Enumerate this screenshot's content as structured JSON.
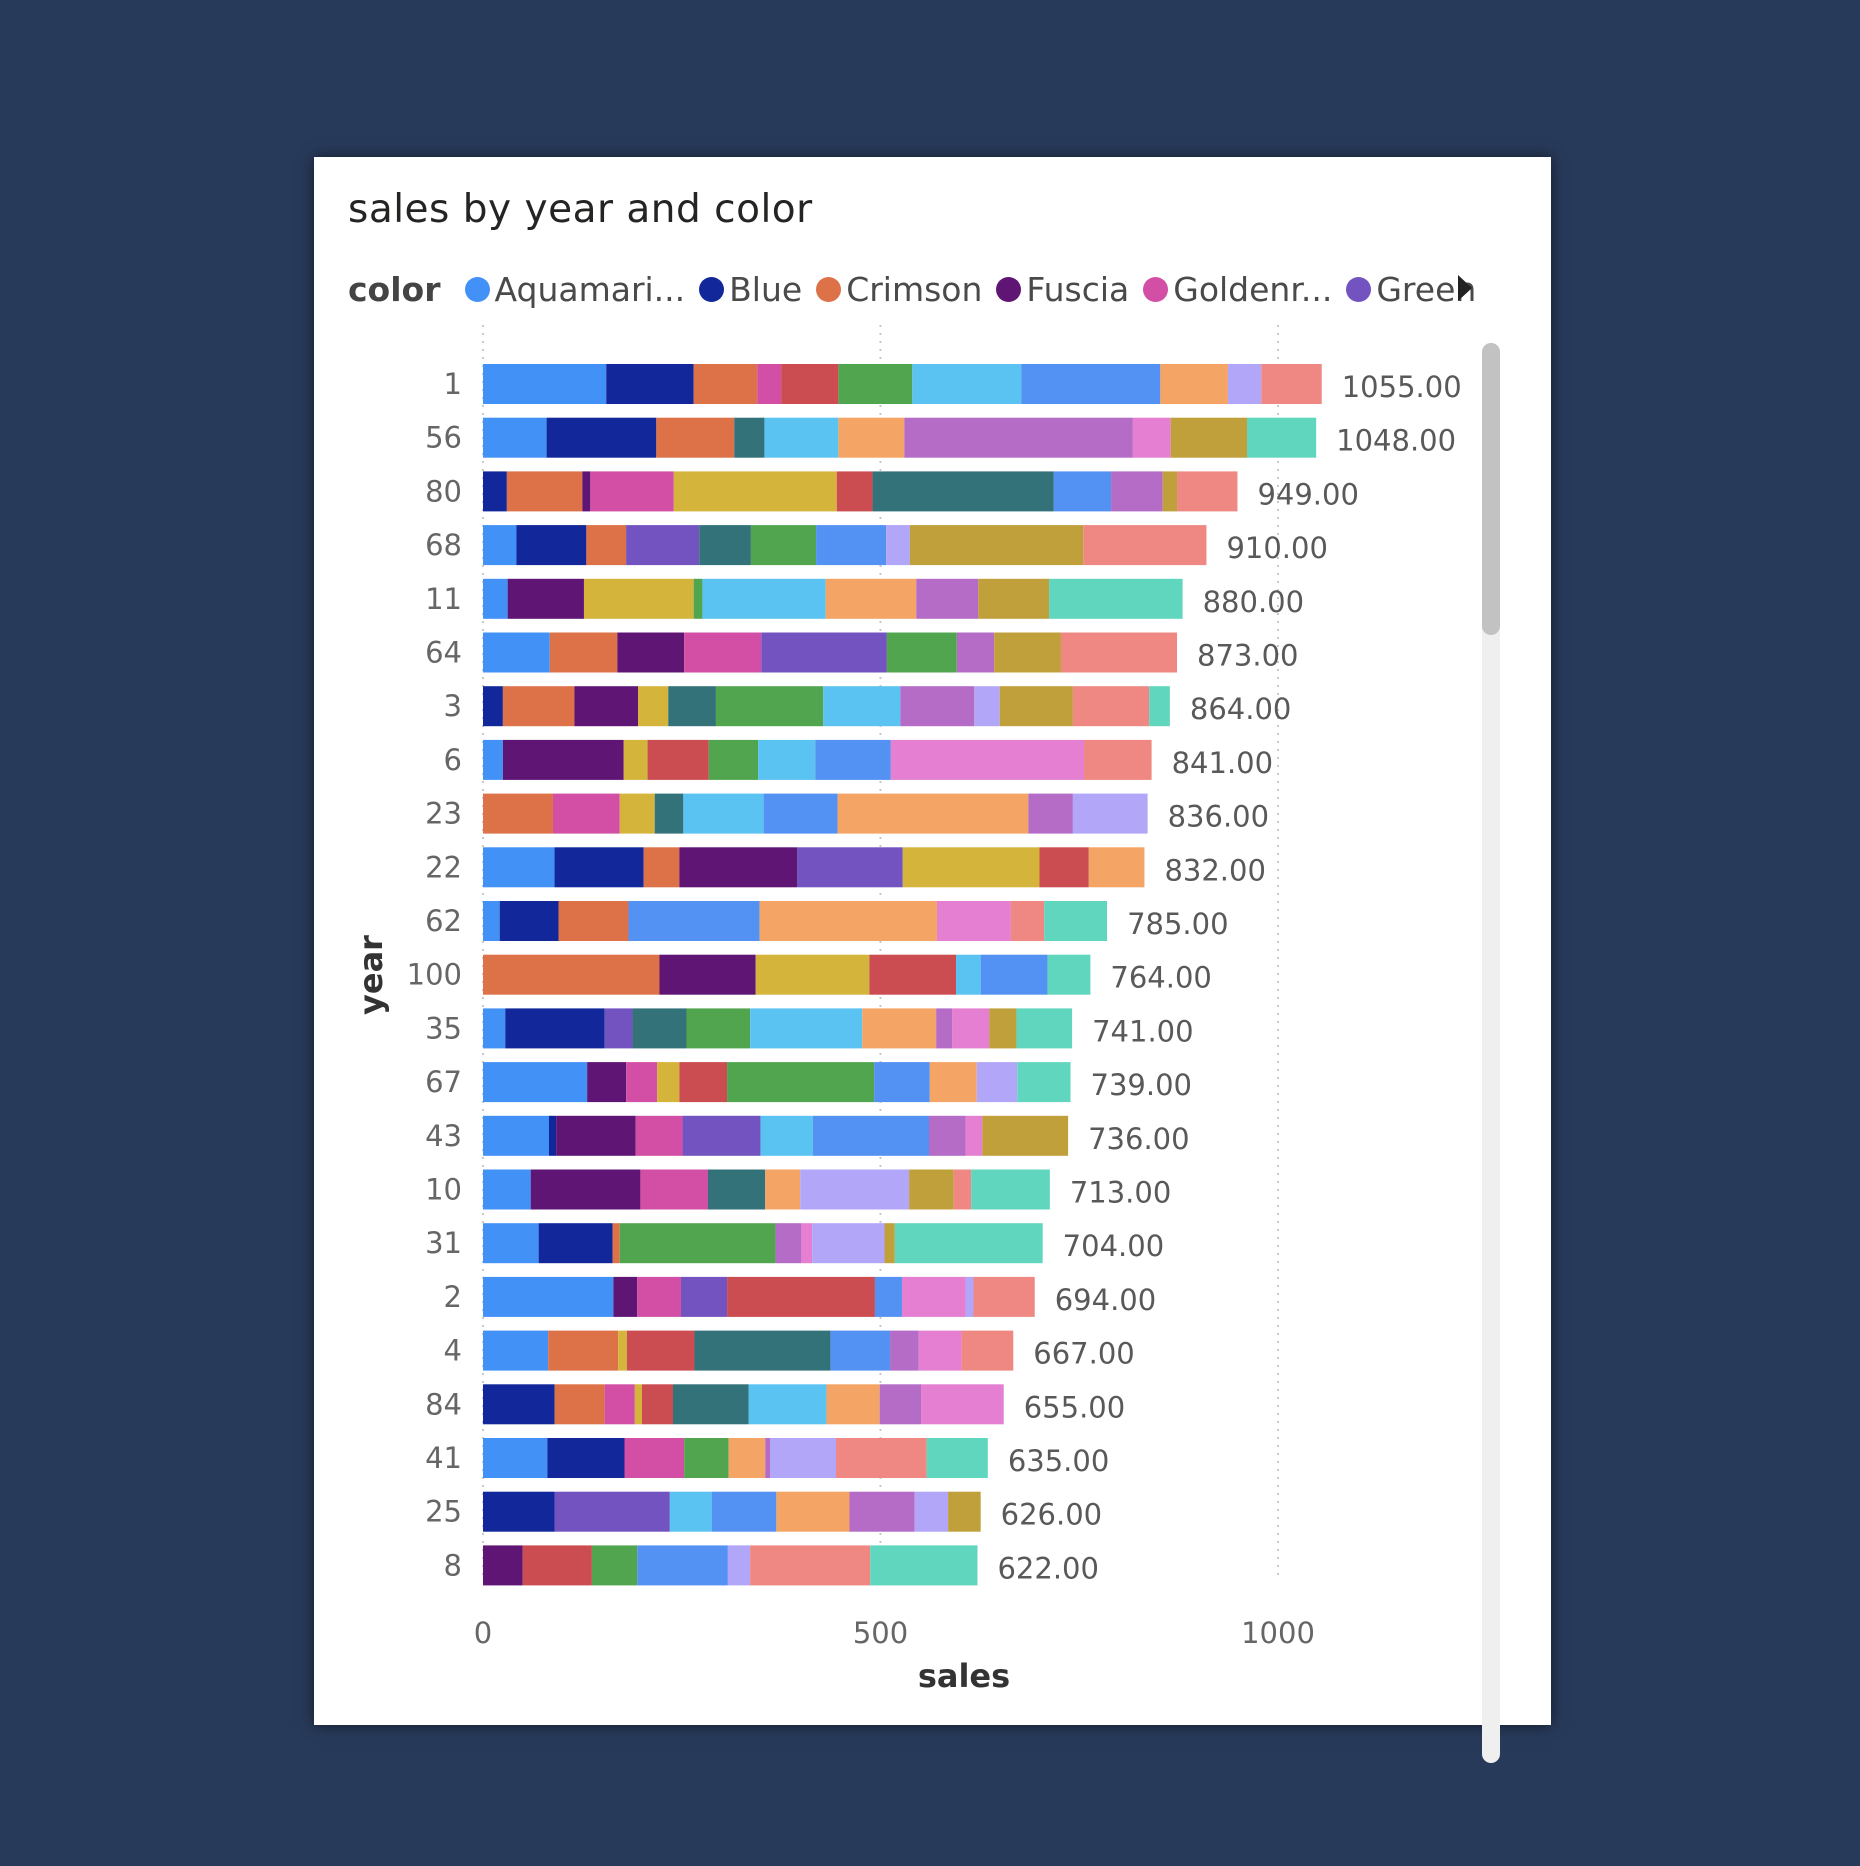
{
  "legend": {
    "title": "color",
    "items": [
      {
        "label": "Aquamari...",
        "color": "#4191f7"
      },
      {
        "label": "Blue",
        "color": "#11279a"
      },
      {
        "label": "Crimson",
        "color": "#dd7148"
      },
      {
        "label": "Fuscia",
        "color": "#5f1574"
      },
      {
        "label": "Goldenr...",
        "color": "#d24fa5"
      },
      {
        "label": "Green",
        "color": "#7253c0"
      }
    ]
  },
  "chart_data": {
    "type": "bar",
    "orientation": "horizontal",
    "stacked": true,
    "title": "sales by year and color",
    "xlabel": "sales",
    "ylabel": "year",
    "xlim": [
      0,
      1200
    ],
    "xticks": [
      0,
      500,
      1000
    ],
    "grid": "vertical-dotted",
    "legend_position": "top-left",
    "categories": [
      "1",
      "56",
      "80",
      "68",
      "11",
      "64",
      "3",
      "6",
      "23",
      "22",
      "62",
      "100",
      "35",
      "67",
      "43",
      "10",
      "31",
      "2",
      "4",
      "84",
      "41",
      "25",
      "8"
    ],
    "totals": [
      1055,
      1048,
      949,
      910,
      880,
      873,
      864,
      841,
      836,
      832,
      785,
      764,
      741,
      739,
      736,
      713,
      704,
      694,
      667,
      655,
      635,
      626,
      622
    ],
    "total_labels": [
      "1055.00",
      "1048.00",
      "949.00",
      "910.00",
      "880.00",
      "873.00",
      "864.00",
      "841.00",
      "836.00",
      "832.00",
      "785.00",
      "764.00",
      "741.00",
      "739.00",
      "736.00",
      "713.00",
      "704.00",
      "694.00",
      "667.00",
      "655.00",
      "635.00",
      "626.00",
      "622.00"
    ],
    "segment_palette": [
      "#4191f7",
      "#11279a",
      "#dd7148",
      "#5f1574",
      "#d24fa5",
      "#7253c0",
      "#d4b43b",
      "#cb4d51",
      "#34727a",
      "#51a54f",
      "#5ac3f2",
      "#5391f2",
      "#f4a465",
      "#b46cc7",
      "#e47fd1",
      "#b1a6f8",
      "#c0a03a",
      "#ef8882",
      "#60d6bf"
    ],
    "segments": [
      [
        [
          0,
          155
        ],
        [
          1,
          110
        ],
        [
          2,
          80
        ],
        [
          4,
          30
        ],
        [
          7,
          72
        ],
        [
          9,
          93
        ],
        [
          10,
          137
        ],
        [
          11,
          175
        ],
        [
          12,
          85
        ],
        [
          15,
          42
        ],
        [
          17,
          76
        ]
      ],
      [
        [
          0,
          80
        ],
        [
          1,
          138
        ],
        [
          2,
          98
        ],
        [
          8,
          38
        ],
        [
          10,
          93
        ],
        [
          12,
          83
        ],
        [
          13,
          287
        ],
        [
          14,
          48
        ],
        [
          16,
          96
        ],
        [
          18,
          87
        ]
      ],
      [
        [
          1,
          30
        ],
        [
          2,
          95
        ],
        [
          3,
          10
        ],
        [
          4,
          105
        ],
        [
          6,
          205
        ],
        [
          7,
          45
        ],
        [
          8,
          228
        ],
        [
          11,
          72
        ],
        [
          13,
          65
        ],
        [
          16,
          18
        ],
        [
          17,
          76
        ]
      ],
      [
        [
          0,
          42
        ],
        [
          1,
          88
        ],
        [
          2,
          50
        ],
        [
          5,
          92
        ],
        [
          8,
          65
        ],
        [
          9,
          82
        ],
        [
          11,
          88
        ],
        [
          15,
          30
        ],
        [
          16,
          218
        ],
        [
          17,
          155
        ]
      ],
      [
        [
          0,
          31
        ],
        [
          3,
          96
        ],
        [
          6,
          138
        ],
        [
          9,
          11
        ],
        [
          10,
          155
        ],
        [
          12,
          114
        ],
        [
          13,
          78
        ],
        [
          16,
          89
        ],
        [
          18,
          168
        ]
      ],
      [
        [
          0,
          84
        ],
        [
          2,
          85
        ],
        [
          3,
          84
        ],
        [
          4,
          97
        ],
        [
          5,
          158
        ],
        [
          9,
          88
        ],
        [
          13,
          47
        ],
        [
          16,
          84
        ],
        [
          17,
          146
        ]
      ],
      [
        [
          1,
          25
        ],
        [
          2,
          90
        ],
        [
          3,
          80
        ],
        [
          6,
          38
        ],
        [
          8,
          60
        ],
        [
          9,
          135
        ],
        [
          10,
          97
        ],
        [
          13,
          93
        ],
        [
          15,
          32
        ],
        [
          16,
          92
        ],
        [
          17,
          96
        ],
        [
          18,
          26
        ]
      ],
      [
        [
          0,
          25
        ],
        [
          3,
          152
        ],
        [
          6,
          30
        ],
        [
          7,
          77
        ],
        [
          9,
          62
        ],
        [
          10,
          72
        ],
        [
          11,
          95
        ],
        [
          14,
          243
        ],
        [
          17,
          85
        ]
      ],
      [
        [
          2,
          88
        ],
        [
          4,
          84
        ],
        [
          6,
          44
        ],
        [
          8,
          36
        ],
        [
          10,
          101
        ],
        [
          11,
          93
        ],
        [
          12,
          240
        ],
        [
          13,
          56
        ],
        [
          15,
          94
        ]
      ],
      [
        [
          0,
          90
        ],
        [
          1,
          112
        ],
        [
          2,
          45
        ],
        [
          3,
          148
        ],
        [
          5,
          133
        ],
        [
          6,
          172
        ],
        [
          7,
          62
        ],
        [
          12,
          70
        ]
      ],
      [
        [
          0,
          21
        ],
        [
          1,
          74
        ],
        [
          2,
          88
        ],
        [
          11,
          165
        ],
        [
          12,
          223
        ],
        [
          14,
          93
        ],
        [
          17,
          42
        ],
        [
          18,
          79
        ]
      ],
      [
        [
          2,
          222
        ],
        [
          3,
          121
        ],
        [
          6,
          143
        ],
        [
          7,
          109
        ],
        [
          10,
          31
        ],
        [
          11,
          84
        ],
        [
          18,
          54
        ]
      ],
      [
        [
          0,
          28
        ],
        [
          1,
          125
        ],
        [
          5,
          35
        ],
        [
          8,
          68
        ],
        [
          9,
          80
        ],
        [
          10,
          141
        ],
        [
          12,
          93
        ],
        [
          13,
          20
        ],
        [
          14,
          47
        ],
        [
          16,
          34
        ],
        [
          18,
          70
        ]
      ],
      [
        [
          0,
          131
        ],
        [
          3,
          49
        ],
        [
          4,
          39
        ],
        [
          6,
          28
        ],
        [
          7,
          60
        ],
        [
          9,
          185
        ],
        [
          11,
          70
        ],
        [
          12,
          59
        ],
        [
          15,
          51
        ],
        [
          18,
          67
        ]
      ],
      [
        [
          0,
          83
        ],
        [
          1,
          9
        ],
        [
          3,
          100
        ],
        [
          4,
          59
        ],
        [
          5,
          98
        ],
        [
          10,
          66
        ],
        [
          11,
          146
        ],
        [
          13,
          46
        ],
        [
          14,
          21
        ],
        [
          16,
          108
        ]
      ],
      [
        [
          0,
          60
        ],
        [
          3,
          138
        ],
        [
          4,
          85
        ],
        [
          8,
          72
        ],
        [
          12,
          44
        ],
        [
          15,
          137
        ],
        [
          16,
          56
        ],
        [
          17,
          22
        ],
        [
          18,
          99
        ]
      ],
      [
        [
          0,
          70
        ],
        [
          1,
          93
        ],
        [
          2,
          9
        ],
        [
          9,
          196
        ],
        [
          13,
          32
        ],
        [
          14,
          14
        ],
        [
          15,
          91
        ],
        [
          16,
          13
        ],
        [
          18,
          186
        ]
      ],
      [
        [
          0,
          164
        ],
        [
          3,
          30
        ],
        [
          4,
          55
        ],
        [
          5,
          58
        ],
        [
          7,
          186
        ],
        [
          11,
          34
        ],
        [
          14,
          80
        ],
        [
          15,
          10
        ],
        [
          17,
          77
        ]
      ],
      [
        [
          0,
          82
        ],
        [
          2,
          88
        ],
        [
          6,
          11
        ],
        [
          7,
          85
        ],
        [
          8,
          171
        ],
        [
          11,
          75
        ],
        [
          13,
          36
        ],
        [
          14,
          54
        ],
        [
          17,
          65
        ]
      ],
      [
        [
          1,
          90
        ],
        [
          2,
          63
        ],
        [
          4,
          38
        ],
        [
          6,
          9
        ],
        [
          7,
          39
        ],
        [
          8,
          95
        ],
        [
          10,
          98
        ],
        [
          12,
          67
        ],
        [
          13,
          52
        ],
        [
          14,
          104
        ]
      ],
      [
        [
          0,
          81
        ],
        [
          1,
          97
        ],
        [
          4,
          75
        ],
        [
          9,
          56
        ],
        [
          12,
          46
        ],
        [
          13,
          6
        ],
        [
          15,
          83
        ],
        [
          17,
          114
        ],
        [
          18,
          77
        ]
      ],
      [
        [
          1,
          90
        ],
        [
          5,
          145
        ],
        [
          10,
          53
        ],
        [
          11,
          81
        ],
        [
          12,
          92
        ],
        [
          13,
          82
        ],
        [
          15,
          42
        ],
        [
          16,
          41
        ]
      ],
      [
        [
          3,
          50
        ],
        [
          7,
          87
        ],
        [
          9,
          57
        ],
        [
          11,
          114
        ],
        [
          15,
          28
        ],
        [
          17,
          151
        ],
        [
          18,
          135
        ]
      ]
    ]
  }
}
